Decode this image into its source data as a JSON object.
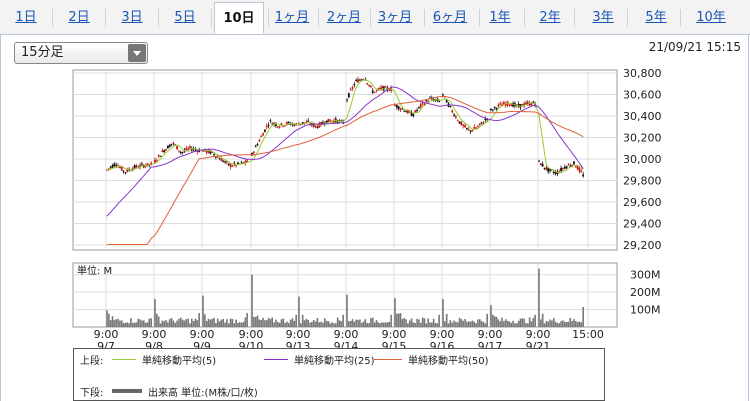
{
  "tabs": [
    {
      "label": "1日",
      "active": false
    },
    {
      "label": "2日",
      "active": false
    },
    {
      "label": "3日",
      "active": false
    },
    {
      "label": "5日",
      "active": false
    },
    {
      "label": "10日",
      "active": true
    },
    {
      "label": "1ヶ月",
      "active": false
    },
    {
      "label": "2ヶ月",
      "active": false
    },
    {
      "label": "3ヶ月",
      "active": false
    },
    {
      "label": "6ヶ月",
      "active": false
    },
    {
      "label": "1年",
      "active": false
    },
    {
      "label": "2年",
      "active": false
    },
    {
      "label": "3年",
      "active": false
    },
    {
      "label": "5年",
      "active": false
    },
    {
      "label": "10年",
      "active": false
    }
  ],
  "interval_select": {
    "value": "15分足"
  },
  "timestamp": "21/09/21 15:15",
  "colors": {
    "up": "#cc1111",
    "down": "#111111",
    "ma5": "#99cc33",
    "ma25": "#8833cc",
    "ma50": "#e0603a",
    "volume": "#777777",
    "grid": "#dddddd"
  },
  "chart_data": [
    {
      "type": "line",
      "ylim": [
        29200,
        30800
      ],
      "y_ticks": [
        "30,800",
        "30,600",
        "30,400",
        "30,200",
        "30,000",
        "29,800",
        "29,600",
        "29,400",
        "29,200"
      ],
      "grid": true,
      "sessions": [
        "9/7",
        "9/8",
        "9/9",
        "9/10",
        "9/13",
        "9/14",
        "9/15",
        "9/16",
        "9/17",
        "9/21"
      ],
      "x_time_labels": [
        "9:00",
        "9:00",
        "9:00",
        "9:00",
        "9:00",
        "9:00",
        "9:00",
        "9:00",
        "9:00",
        "9:00",
        "15:00"
      ],
      "x_date_labels": [
        "9/7",
        "9/8",
        "9/9",
        "9/10",
        "9/13",
        "9/14",
        "9/15",
        "9/16",
        "9/17",
        "9/21"
      ],
      "price_path": [
        [
          29900,
          29960,
          29880,
          29920,
          29940,
          29950
        ],
        [
          29980,
          30080,
          30150,
          30060,
          30100,
          30080
        ],
        [
          30080,
          30060,
          30000,
          29940,
          29950,
          29970
        ],
        [
          30040,
          30200,
          30350,
          30310,
          30330,
          30320
        ],
        [
          30330,
          30340,
          30300,
          30350,
          30360,
          30340
        ],
        [
          30560,
          30720,
          30760,
          30620,
          30660,
          30650
        ],
        [
          30500,
          30460,
          30410,
          30500,
          30560,
          30540
        ],
        [
          30600,
          30450,
          30330,
          30260,
          30300,
          30380
        ],
        [
          30450,
          30500,
          30520,
          30490,
          30510,
          30520
        ],
        [
          29970,
          29900,
          29870,
          29930,
          29960,
          29850
        ]
      ],
      "series": [
        {
          "name": "単純移動平均(5)"
        },
        {
          "name": "単純移動平均(25)"
        },
        {
          "name": "単純移動平均(50)"
        }
      ]
    },
    {
      "type": "bar",
      "series_name": "出来高",
      "unit_label": "単位: M",
      "ylim": [
        0,
        350
      ],
      "y_ticks": [
        "300M",
        "200M",
        "100M"
      ],
      "session_open_volumes": [
        95,
        160,
        180,
        300,
        175,
        185,
        165,
        160,
        125,
        335
      ],
      "session_close_volumes": [
        50,
        80,
        80,
        70,
        70,
        70,
        70,
        75,
        70,
        115
      ],
      "typical_intraday_range": [
        20,
        70
      ]
    }
  ],
  "legend": {
    "upper_label": "上段:",
    "lower_label": "下段:",
    "ma5_label": "単純移動平均(5)",
    "ma25_label": "単純移動平均(25)",
    "ma50_label": "単純移動平均(50)",
    "volume_label": "出来高 単位:(M株/口/枚)"
  }
}
